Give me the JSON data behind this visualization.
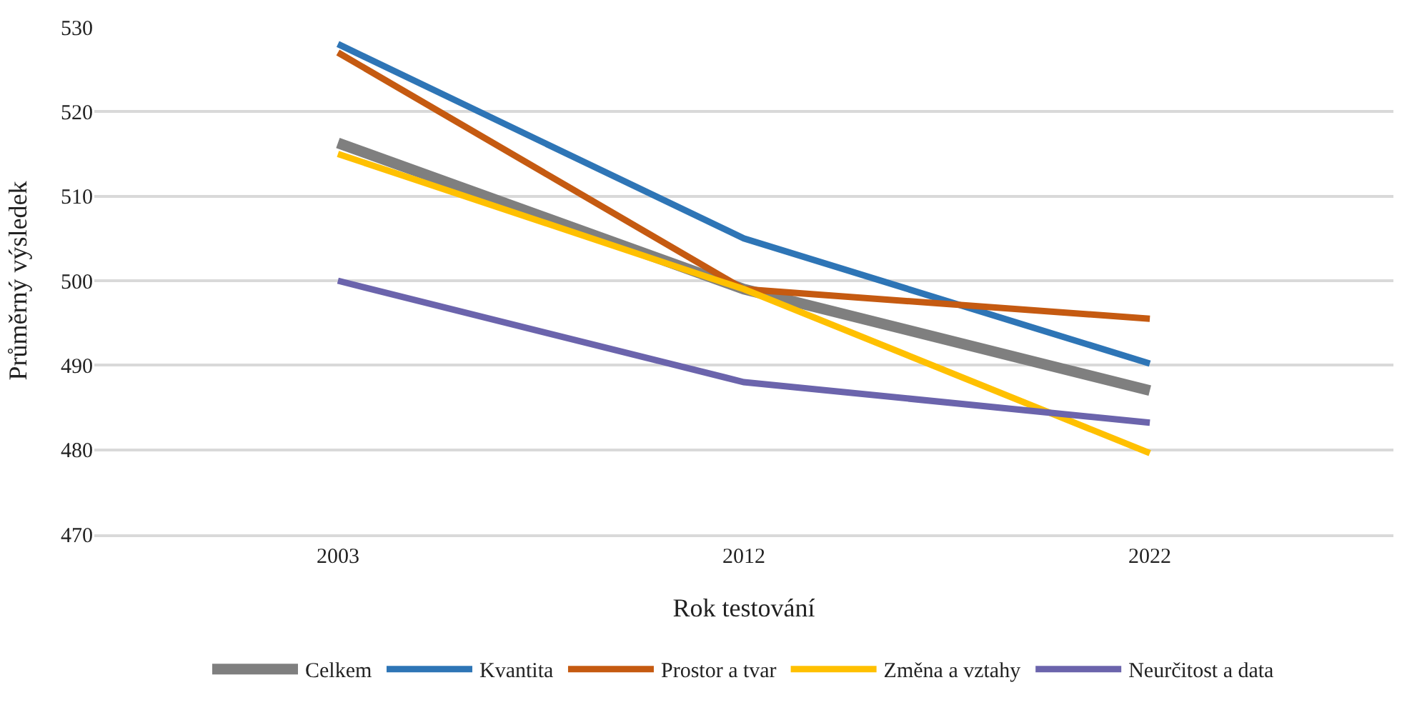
{
  "chart_data": {
    "type": "line",
    "xlabel": "Rok testování",
    "ylabel": "Průměrný výsledek",
    "categories": [
      "2003",
      "2012",
      "2022"
    ],
    "series": [
      {
        "name": "Celkem",
        "color": "#7f7f7f",
        "values": [
          516.3,
          499,
          487
        ]
      },
      {
        "name": "Kvantita",
        "color": "#2e75b6",
        "values": [
          528,
          505,
          490.2
        ]
      },
      {
        "name": "Prostor a tvar",
        "color": "#c55a11",
        "values": [
          527,
          499,
          495.5
        ]
      },
      {
        "name": "Změna a vztahy",
        "color": "#ffc000",
        "values": [
          515,
          499,
          479.6
        ]
      },
      {
        "name": "Neurčitost a data",
        "color": "#6b64ac",
        "values": [
          500,
          488,
          483.2
        ]
      }
    ],
    "ylim": [
      470,
      530
    ],
    "yticks": [
      470,
      480,
      490,
      500,
      510,
      520,
      530
    ],
    "grid": "y",
    "legend": "bottom",
    "marker": "none",
    "line_style": "solid"
  }
}
